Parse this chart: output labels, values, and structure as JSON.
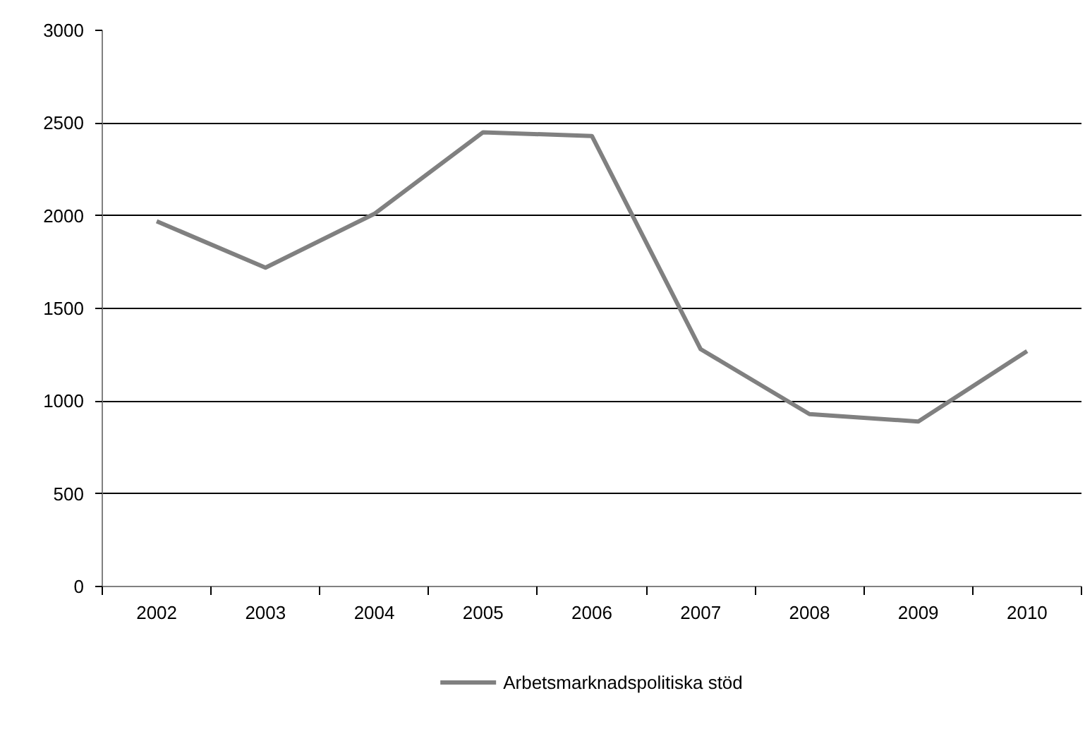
{
  "chart_data": {
    "type": "line",
    "categories": [
      "2002",
      "2003",
      "2004",
      "2005",
      "2006",
      "2007",
      "2008",
      "2009",
      "2010"
    ],
    "series": [
      {
        "name": "Arbetsmarknadspolitiska stöd",
        "color": "#808080",
        "values": [
          1970,
          1720,
          2010,
          2450,
          2430,
          1280,
          930,
          890,
          1270
        ]
      }
    ],
    "ylim": [
      0,
      3000
    ],
    "yticks": [
      0,
      500,
      1000,
      1500,
      2000,
      2500,
      3000
    ],
    "grid": "y",
    "legend": "bottom"
  }
}
